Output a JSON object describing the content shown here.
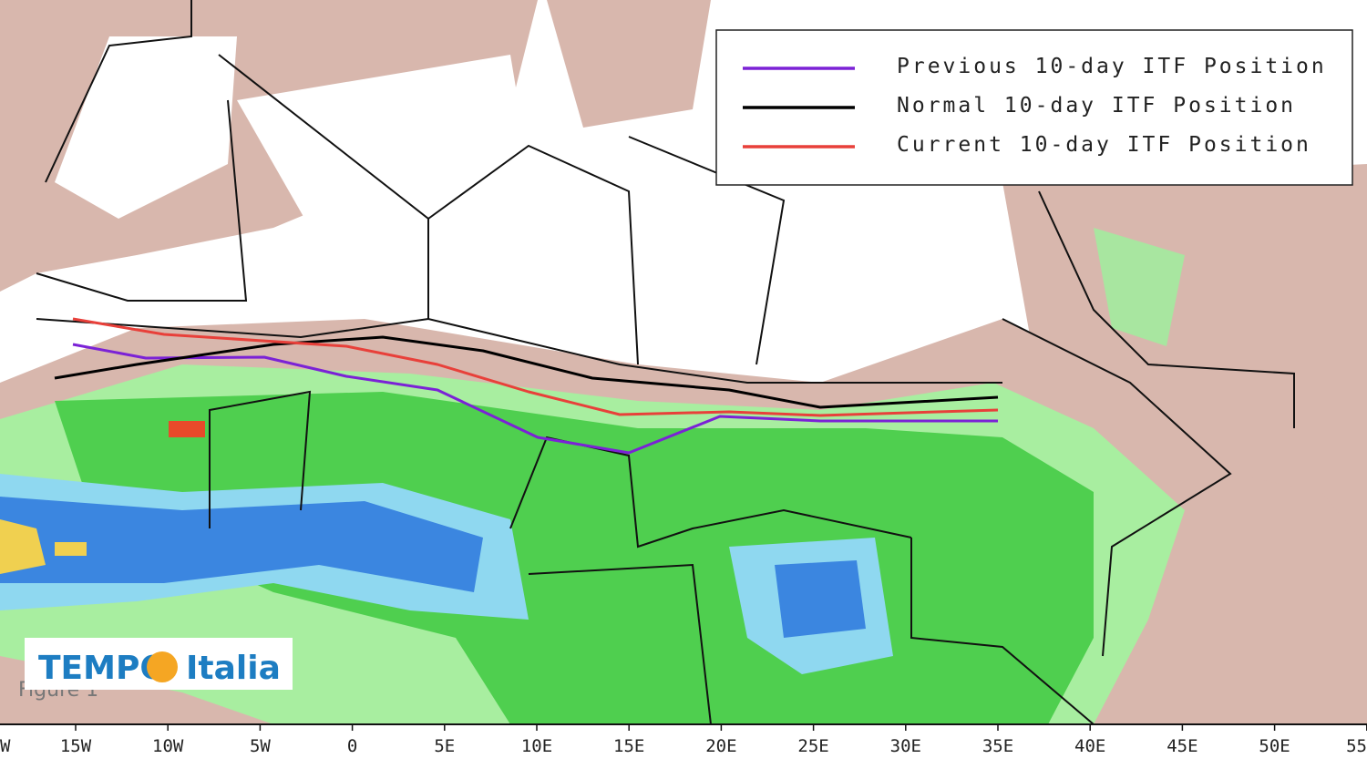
{
  "legend": {
    "entries": [
      {
        "label": "Previous 10-day ITF Position",
        "color": "#7b22d6"
      },
      {
        "label": "Normal 10-day ITF Position",
        "color": "#000000"
      },
      {
        "label": "Current 10-day ITF Position",
        "color": "#e8403a"
      }
    ]
  },
  "x_axis": {
    "ticks": [
      "W",
      "15W",
      "10W",
      "5W",
      "0",
      "5E",
      "10E",
      "15E",
      "20E",
      "25E",
      "30E",
      "35E",
      "40E",
      "45E",
      "50E",
      "55"
    ]
  },
  "caption": "Figure 1",
  "logo": {
    "brand": "TEMPO",
    "suffix": "Italia"
  }
}
